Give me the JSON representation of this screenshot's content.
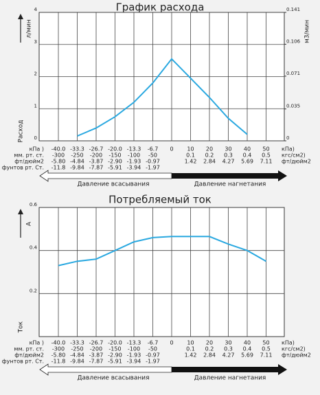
{
  "chart_data": [
    {
      "type": "line",
      "title": "График расхода",
      "y_unit": "л/мин",
      "y_label": "Расход",
      "y2_unit": "м3/мин",
      "categories": [
        "-40.0",
        "-33.3",
        "-26.7",
        "-20.0",
        "-13.3",
        "-6.7",
        "0",
        "10",
        "20",
        "30",
        "40",
        "50"
      ],
      "values": [
        null,
        0.15,
        0.4,
        0.75,
        1.2,
        1.8,
        2.55,
        1.95,
        1.35,
        0.7,
        0.2,
        null
      ],
      "color": "#29a8e0",
      "ylim": [
        0,
        4
      ],
      "yticks": [
        0,
        1,
        2,
        3,
        4
      ],
      "y2lim": [
        0,
        0.141
      ],
      "y2ticks": [
        0,
        0.035,
        0.071,
        0.106,
        0.141
      ],
      "grid": true,
      "first_row_units": {
        "left": "кПа )",
        "right": "кПа)"
      },
      "rows": [
        {
          "left_unit": "мм. рт. ст.",
          "right_unit": "кгс/см2)",
          "labels": [
            "-300",
            "-250",
            "-200",
            "-150",
            "-100",
            "-50",
            null,
            "0.1",
            "0.2",
            "0.3",
            "0.4",
            "0.5"
          ]
        },
        {
          "left_unit": "фт/дюйм2",
          "right_unit": "фт/дюйм2",
          "labels": [
            "-5.80",
            "-4.84",
            "-3.87",
            "-2.90",
            "-1.93",
            "-0.97",
            null,
            "1.42",
            "2.84",
            "4.27",
            "5.69",
            "7.11"
          ]
        },
        {
          "left_unit": "фунтов рт. Ст.",
          "labels": [
            "-11.8",
            "-9.84",
            "-7.87",
            "-5.91",
            "-3.94",
            "-1.97",
            null,
            null,
            null,
            null,
            null,
            null
          ]
        }
      ],
      "suction_label": "Давление всасывания",
      "discharge_label": "Давление нагнетания"
    },
    {
      "type": "line",
      "title": "Потребляемый ток",
      "y_unit": "A",
      "y_label": "Ток",
      "categories": [
        "-40.0",
        "-33.3",
        "-26.7",
        "-20.0",
        "-13.3",
        "-6.7",
        "0",
        "10",
        "20",
        "30",
        "40",
        "50"
      ],
      "values": [
        0.33,
        0.35,
        0.36,
        0.4,
        0.44,
        0.46,
        0.465,
        0.465,
        0.465,
        0.43,
        0.4,
        0.35
      ],
      "color": "#29a8e0",
      "ylim": [
        0,
        0.6
      ],
      "yticks": [
        0.2,
        0.4,
        0.6
      ],
      "grid": true,
      "first_row_units": {
        "left": "кПа )",
        "right": "кПа)"
      },
      "rows": [
        {
          "left_unit": "мм. рт. ст.",
          "right_unit": "кгс/см2)",
          "labels": [
            "-300",
            "-250",
            "-200",
            "-150",
            "-100",
            "-50",
            null,
            "0.1",
            "0.2",
            "0.3",
            "0.4",
            "0.5"
          ]
        },
        {
          "left_unit": "фт/дюйм2",
          "right_unit": "фт/дюйм2",
          "labels": [
            "-5.80",
            "-4.84",
            "-3.87",
            "-2.90",
            "-1.93",
            "-0.97",
            null,
            "1.42",
            "2.84",
            "4.27",
            "5.69",
            "7.11"
          ]
        },
        {
          "left_unit": "фунтов рт. Ст.",
          "labels": [
            "-11.8",
            "-9.84",
            "-7.87",
            "-5.91",
            "-3.94",
            "-1.97",
            null,
            null,
            null,
            null,
            null,
            null
          ]
        }
      ],
      "suction_label": "Давление всасывания",
      "discharge_label": "Давление нагнетания"
    }
  ]
}
